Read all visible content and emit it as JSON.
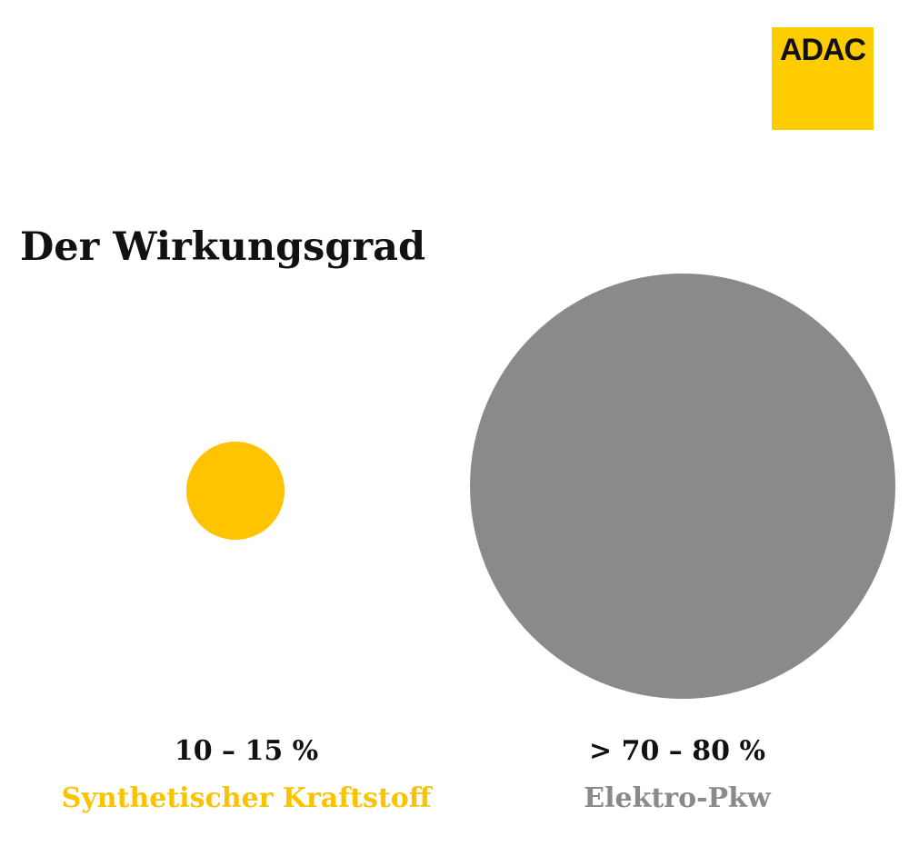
{
  "logo": "ADAC",
  "title": "Der Wirkungsgrad",
  "items": [
    {
      "value_text": "10 – 15 %",
      "label": "Synthetischer Kraftstoff"
    },
    {
      "value_text": "> 70 – 80 %",
      "label": "Elektro-Pkw"
    }
  ]
}
